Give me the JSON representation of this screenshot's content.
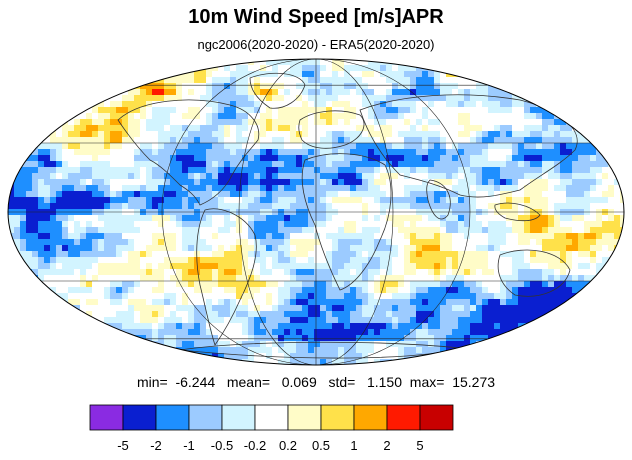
{
  "title": "10m Wind Speed [m/s]APR",
  "subtitle": "ngc2006(2020-2020) - ERA5(2020-2020)",
  "stats": {
    "min_label": "min=",
    "min_value": "-6.244",
    "mean_label": "mean=",
    "mean_value": "0.069",
    "std_label": "std=",
    "std_value": "1.150",
    "max_label": "max=",
    "max_value": "15.273"
  },
  "colorbar": {
    "colors": [
      "#8a2be2",
      "#0a1fd0",
      "#1e8fff",
      "#9ccbff",
      "#d2f4ff",
      "#ffffff",
      "#fffcc8",
      "#ffe14a",
      "#ffa800",
      "#ff1a00",
      "#c80000"
    ],
    "labels": [
      "-5",
      "-2",
      "-1",
      "-0.5",
      "-0.2",
      "0.2",
      "0.5",
      "1",
      "2",
      "5"
    ]
  },
  "map": {
    "projection": "mollweide",
    "palette_names": [
      "deep-blue",
      "blue",
      "light-blue",
      "pale-blue",
      "white",
      "pale-yellow",
      "yellow",
      "orange",
      "red"
    ]
  }
}
